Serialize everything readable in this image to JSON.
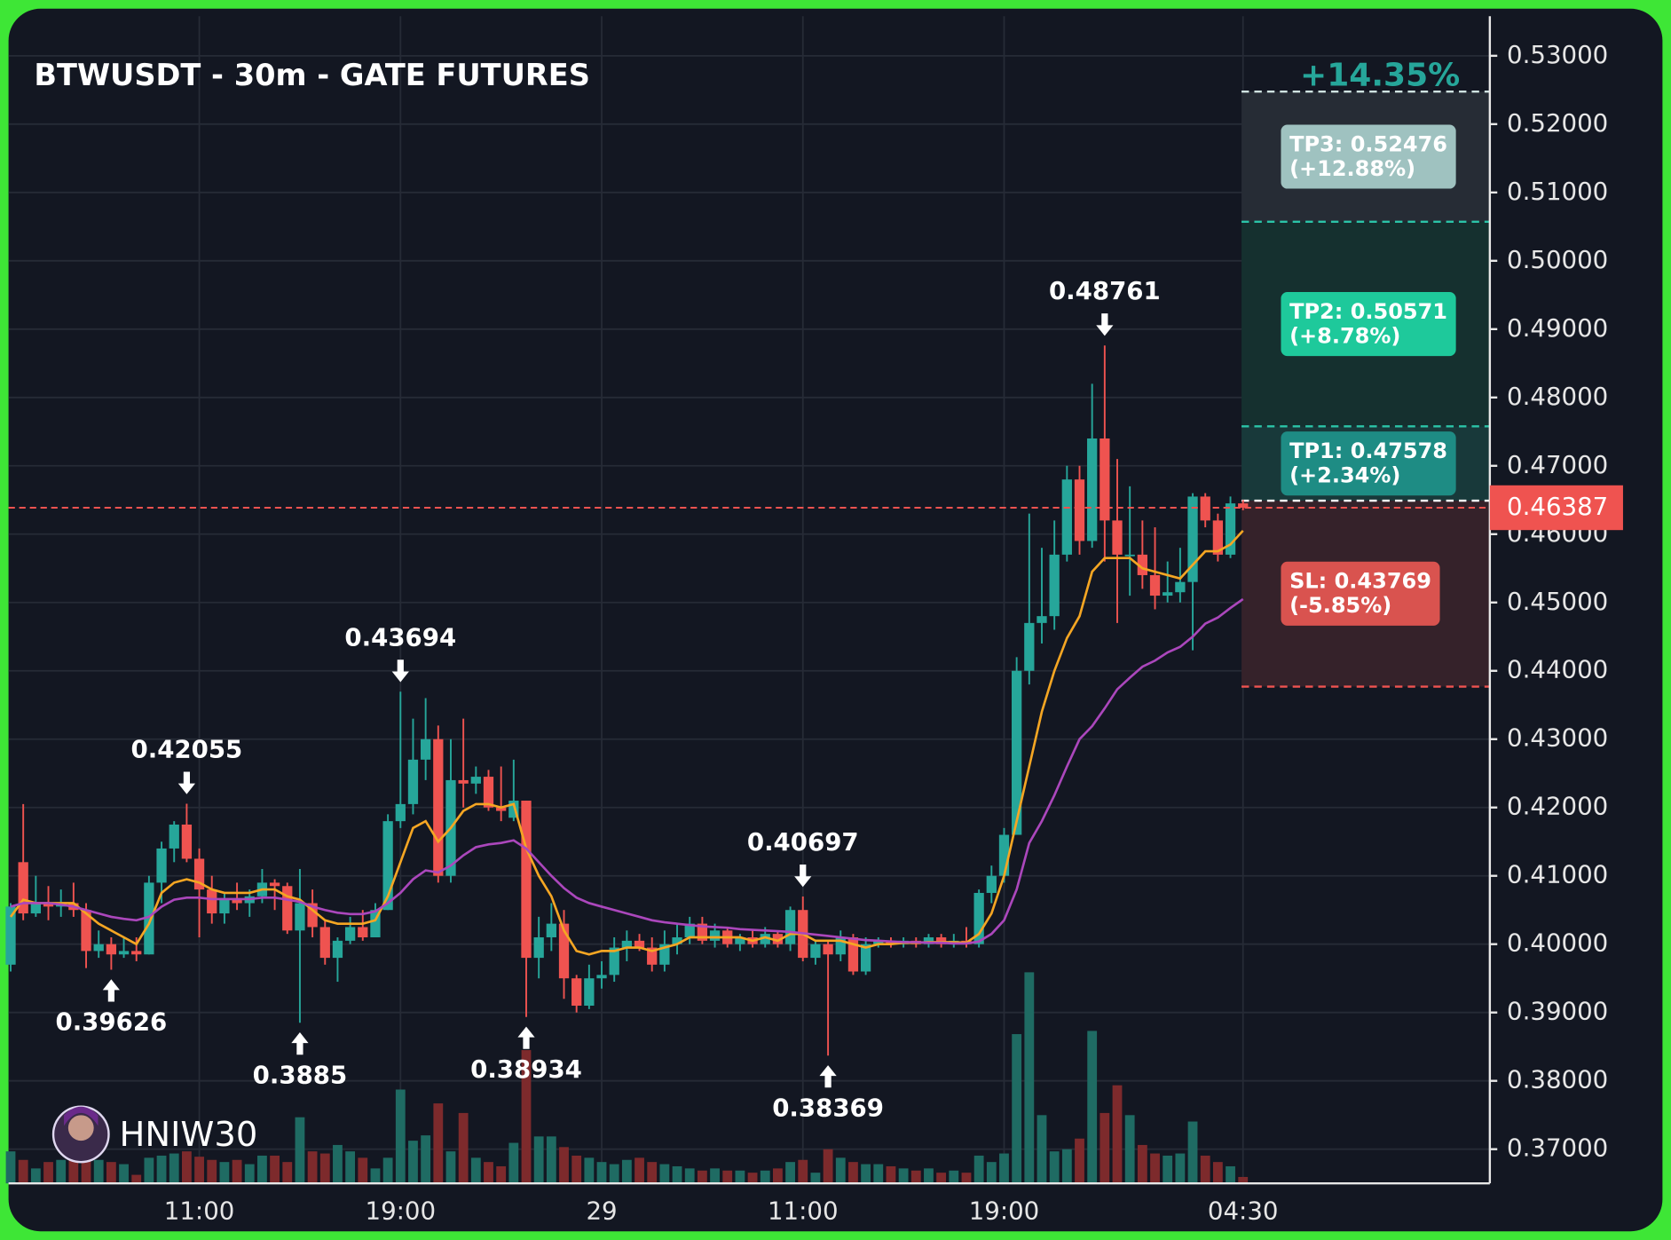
{
  "chart_data": {
    "type": "candlestick",
    "title": "BTWUSDT - 30m - GATE FUTURES",
    "categories": [
      null,
      null,
      null,
      null,
      null,
      null,
      null,
      null,
      null,
      null,
      null,
      null,
      null,
      null,
      null,
      "11:00",
      null,
      null,
      null,
      null,
      null,
      null,
      null,
      null,
      null,
      null,
      null,
      null,
      null,
      null,
      null,
      "19:00",
      null,
      null,
      null,
      null,
      null,
      null,
      null,
      null,
      null,
      null,
      null,
      null,
      null,
      null,
      null,
      "29",
      null,
      null,
      null,
      null,
      null,
      null,
      null,
      null,
      null,
      null,
      null,
      null,
      null,
      null,
      null,
      "11:00",
      null,
      null,
      null,
      null,
      null,
      null,
      null,
      null,
      null,
      null,
      null,
      null,
      null,
      null,
      null,
      "19:00",
      null,
      null,
      null,
      null,
      null,
      null,
      null,
      null,
      null,
      null,
      null,
      null,
      null,
      null,
      null,
      null,
      null,
      null,
      "04:30"
    ],
    "open": [
      0.397,
      0.412,
      0.4045,
      0.406,
      0.4055,
      0.406,
      0.405,
      0.399,
      0.4,
      0.3985,
      0.399,
      0.3985,
      0.409,
      0.414,
      0.4175,
      0.4125,
      0.408,
      0.4045,
      0.4065,
      0.406,
      0.407,
      0.409,
      0.4085,
      0.402,
      0.406,
      0.4025,
      0.398,
      0.4005,
      0.4025,
      0.401,
      0.405,
      0.418,
      0.4205,
      0.427,
      0.43,
      0.41,
      0.424,
      0.4235,
      0.4245,
      0.42,
      0.4185,
      0.421,
      0.398,
      0.401,
      0.403,
      0.395,
      0.391,
      0.395,
      0.3955,
      0.3995,
      0.4005,
      0.3995,
      0.397,
      0.4,
      0.401,
      0.403,
      0.4005,
      0.402,
      0.4,
      0.401,
      0.4,
      0.4015,
      0.4,
      0.405,
      0.398,
      0.4,
      0.3985,
      0.401,
      0.396,
      0.4,
      0.4005,
      0.4,
      0.4005,
      0.4,
      0.401,
      0.4,
      0.4005,
      0.4,
      0.4075,
      0.41,
      0.416,
      0.44,
      0.447,
      0.448,
      0.457,
      0.468,
      0.459,
      0.474,
      0.462,
      0.457,
      0.457,
      0.454,
      0.451,
      0.4515,
      0.453,
      0.4655,
      0.462,
      0.457,
      0.4645
    ],
    "high": [
      0.406,
      0.4205,
      0.41,
      0.4085,
      0.408,
      0.409,
      0.406,
      0.402,
      0.401,
      0.401,
      0.401,
      0.41,
      0.415,
      0.418,
      0.42055,
      0.414,
      0.41,
      0.4075,
      0.409,
      0.408,
      0.411,
      0.4095,
      0.409,
      0.411,
      0.408,
      0.4035,
      0.401,
      0.404,
      0.405,
      0.406,
      0.419,
      0.43694,
      0.433,
      0.436,
      0.432,
      0.43,
      0.433,
      0.426,
      0.4255,
      0.426,
      0.427,
      0.421,
      0.404,
      0.406,
      0.405,
      0.3955,
      0.397,
      0.3975,
      0.401,
      0.402,
      0.4015,
      0.401,
      0.402,
      0.403,
      0.404,
      0.404,
      0.403,
      0.4025,
      0.4015,
      0.402,
      0.4025,
      0.402,
      0.4055,
      0.40697,
      0.4005,
      0.4005,
      0.402,
      0.4015,
      0.401,
      0.401,
      0.401,
      0.401,
      0.401,
      0.4015,
      0.4015,
      0.4015,
      0.4025,
      0.408,
      0.4115,
      0.417,
      0.442,
      0.463,
      0.458,
      0.462,
      0.47,
      0.47,
      0.482,
      0.48761,
      0.471,
      0.467,
      0.462,
      0.461,
      0.456,
      0.458,
      0.466,
      0.466,
      0.463,
      0.4655,
      0.465
    ],
    "low": [
      0.396,
      0.4035,
      0.404,
      0.4035,
      0.404,
      0.404,
      0.3965,
      0.398,
      0.39626,
      0.398,
      0.3975,
      0.3985,
      0.406,
      0.412,
      0.412,
      0.401,
      0.403,
      0.403,
      0.405,
      0.404,
      0.406,
      0.405,
      0.4015,
      0.3885,
      0.401,
      0.397,
      0.3945,
      0.4,
      0.4005,
      0.401,
      0.405,
      0.417,
      0.419,
      0.424,
      0.409,
      0.409,
      0.42,
      0.422,
      0.4195,
      0.418,
      0.418,
      0.38934,
      0.395,
      0.399,
      0.392,
      0.39,
      0.3905,
      0.3935,
      0.3945,
      0.3975,
      0.399,
      0.396,
      0.396,
      0.3985,
      0.4,
      0.4,
      0.3995,
      0.3995,
      0.399,
      0.3995,
      0.3995,
      0.3995,
      0.399,
      0.3975,
      0.397,
      0.38369,
      0.3975,
      0.3955,
      0.3955,
      0.3995,
      0.3995,
      0.3995,
      0.3995,
      0.3995,
      0.3995,
      0.3995,
      0.3995,
      0.3995,
      0.406,
      0.409,
      0.416,
      0.438,
      0.444,
      0.446,
      0.456,
      0.457,
      0.458,
      0.456,
      0.447,
      0.451,
      0.452,
      0.449,
      0.45,
      0.45,
      0.443,
      0.461,
      0.456,
      0.4565,
      0.4635
    ],
    "close": [
      0.4055,
      0.4045,
      0.406,
      0.4055,
      0.406,
      0.405,
      0.399,
      0.4,
      0.3985,
      0.399,
      0.3985,
      0.409,
      0.414,
      0.4175,
      0.4125,
      0.408,
      0.4045,
      0.4065,
      0.406,
      0.407,
      0.409,
      0.4085,
      0.402,
      0.406,
      0.4025,
      0.398,
      0.4005,
      0.4025,
      0.401,
      0.405,
      0.418,
      0.4205,
      0.427,
      0.43,
      0.41,
      0.424,
      0.4235,
      0.4245,
      0.42,
      0.4195,
      0.421,
      0.398,
      0.401,
      0.403,
      0.395,
      0.391,
      0.395,
      0.3955,
      0.3995,
      0.4005,
      0.3995,
      0.397,
      0.4,
      0.401,
      0.403,
      0.4005,
      0.402,
      0.4,
      0.401,
      0.4,
      0.4015,
      0.4,
      0.405,
      0.398,
      0.4,
      0.3985,
      0.401,
      0.396,
      0.4,
      0.4005,
      0.4,
      0.4005,
      0.4,
      0.401,
      0.4,
      0.4005,
      0.4,
      0.4075,
      0.41,
      0.416,
      0.44,
      0.447,
      0.448,
      0.457,
      0.468,
      0.459,
      0.474,
      0.462,
      0.457,
      0.457,
      0.454,
      0.451,
      0.4515,
      0.453,
      0.4655,
      0.462,
      0.457,
      0.4645,
      0.46387
    ],
    "volume": [
      30,
      22,
      14,
      20,
      22,
      26,
      25,
      22,
      20,
      18,
      8,
      24,
      26,
      28,
      30,
      25,
      22,
      20,
      22,
      18,
      26,
      26,
      20,
      62,
      30,
      28,
      36,
      30,
      24,
      14,
      24,
      88,
      40,
      45,
      75,
      30,
      66,
      24,
      20,
      16,
      38,
      125,
      44,
      44,
      34,
      26,
      24,
      20,
      18,
      22,
      24,
      20,
      18,
      16,
      14,
      12,
      14,
      12,
      12,
      10,
      12,
      14,
      20,
      22,
      10,
      32,
      24,
      20,
      18,
      18,
      16,
      14,
      12,
      14,
      10,
      12,
      10,
      26,
      20,
      28,
      140,
      198,
      64,
      30,
      32,
      42,
      143,
      66,
      92,
      64,
      36,
      28,
      26,
      28,
      58,
      26,
      20,
      16,
      6
    ],
    "up_color": "#26a69a",
    "down_color": "#ef5350",
    "up_volume_color": "#1f6b63",
    "down_volume_color": "#7d2a2c",
    "series": [
      {
        "color": "#f5a623",
        "values": [
          0.404,
          0.4065,
          0.406,
          0.406,
          0.406,
          0.406,
          0.4045,
          0.403,
          0.402,
          0.401,
          0.4,
          0.403,
          0.4075,
          0.409,
          0.4095,
          0.409,
          0.408,
          0.4075,
          0.4075,
          0.4075,
          0.408,
          0.408,
          0.407,
          0.4065,
          0.405,
          0.4035,
          0.403,
          0.403,
          0.403,
          0.4035,
          0.407,
          0.412,
          0.417,
          0.418,
          0.415,
          0.417,
          0.4195,
          0.4205,
          0.4205,
          0.42,
          0.4205,
          0.414,
          0.41,
          0.407,
          0.402,
          0.399,
          0.3985,
          0.399,
          0.399,
          0.3995,
          0.3995,
          0.399,
          0.3995,
          0.4,
          0.401,
          0.401,
          0.401,
          0.401,
          0.401,
          0.4005,
          0.401,
          0.4005,
          0.4015,
          0.4015,
          0.4005,
          0.4005,
          0.4005,
          0.4,
          0.3995,
          0.4,
          0.4,
          0.4002,
          0.4002,
          0.4003,
          0.4003,
          0.4003,
          0.4002,
          0.4015,
          0.4045,
          0.41,
          0.418,
          0.426,
          0.434,
          0.44,
          0.4448,
          0.448,
          0.4545,
          0.4565,
          0.4565,
          0.4565,
          0.455,
          0.4545,
          0.454,
          0.4535,
          0.4555,
          0.4575,
          0.4575,
          0.4585,
          0.4605
        ]
      },
      {
        "color": "#ab47bc",
        "values": [
          0.4055,
          0.406,
          0.406,
          0.406,
          0.4058,
          0.4055,
          0.405,
          0.4045,
          0.404,
          0.4037,
          0.4035,
          0.404,
          0.4055,
          0.4065,
          0.4068,
          0.4068,
          0.4066,
          0.4066,
          0.4066,
          0.4066,
          0.4068,
          0.4068,
          0.4065,
          0.4062,
          0.4055,
          0.405,
          0.4046,
          0.4044,
          0.4044,
          0.4048,
          0.406,
          0.4075,
          0.4095,
          0.4108,
          0.4105,
          0.4115,
          0.413,
          0.4142,
          0.4146,
          0.4148,
          0.4152,
          0.414,
          0.412,
          0.41,
          0.4082,
          0.4068,
          0.406,
          0.4055,
          0.405,
          0.4045,
          0.404,
          0.4035,
          0.4032,
          0.403,
          0.4028,
          0.4026,
          0.4025,
          0.4024,
          0.4022,
          0.4021,
          0.402,
          0.4019,
          0.4018,
          0.4016,
          0.4014,
          0.4012,
          0.401,
          0.4008,
          0.4006,
          0.4005,
          0.4004,
          0.4003,
          0.4003,
          0.4002,
          0.4002,
          0.4001,
          0.4001,
          0.4004,
          0.4015,
          0.4035,
          0.408,
          0.4148,
          0.418,
          0.4218,
          0.426,
          0.43,
          0.4319,
          0.4345,
          0.4373,
          0.439,
          0.4406,
          0.4415,
          0.4427,
          0.4435,
          0.445,
          0.4469,
          0.4478,
          0.4492,
          0.4505
        ]
      }
    ],
    "ylim": [
      0.365,
      0.5358
    ],
    "yticks": [
      {
        "value": 0.37,
        "label": "0.37000"
      },
      {
        "value": 0.38,
        "label": "0.38000"
      },
      {
        "value": 0.39,
        "label": "0.39000"
      },
      {
        "value": 0.4,
        "label": "0.40000"
      },
      {
        "value": 0.41,
        "label": "0.41000"
      },
      {
        "value": 0.42,
        "label": "0.42000"
      },
      {
        "value": 0.43,
        "label": "0.43000"
      },
      {
        "value": 0.44,
        "label": "0.44000"
      },
      {
        "value": 0.45,
        "label": "0.45000"
      },
      {
        "value": 0.46,
        "label": "0.46000"
      },
      {
        "value": 0.47,
        "label": "0.47000"
      },
      {
        "value": 0.48,
        "label": "0.48000"
      },
      {
        "value": 0.49,
        "label": "0.49000"
      },
      {
        "value": 0.5,
        "label": "0.50000"
      },
      {
        "value": 0.51,
        "label": "0.51000"
      },
      {
        "value": 0.52,
        "label": "0.52000"
      },
      {
        "value": 0.53,
        "label": "0.53000"
      }
    ],
    "grid": true,
    "annotations": [
      0.42055,
      0.39626,
      0.3885,
      0.43694,
      0.38934,
      0.40697,
      0.38369,
      0.48761
    ],
    "last_price": 0.46387,
    "last_price_color": "#ef5350",
    "entry": 0.4649,
    "headline": "+14.35%",
    "headline_color": "#26a69a",
    "targets": [
      {
        "label": "TP3: 0.52476",
        "change": "(+12.88%)",
        "value": 0.52476,
        "color": "#9fc2c0",
        "line": "#cfe3e1",
        "zone": "#262c35"
      },
      {
        "label": "TP2: 0.50571",
        "change": "(+8.78%)",
        "value": 0.50571,
        "color": "#1ec99b",
        "line": "#2bc4a8",
        "zone": "#15302f"
      },
      {
        "label": "TP1: 0.47578",
        "change": "(+2.34%)",
        "value": 0.47578,
        "color": "#1e8c84",
        "line": "#2bc4a8",
        "zone": "#18393a"
      },
      {
        "label": "SL: 0.43769",
        "change": "(-5.85%)",
        "value": 0.43769,
        "color": "#d9534f",
        "line": "#ef5350",
        "zone": "#35222a"
      }
    ],
    "watermark": "HNIW30"
  }
}
